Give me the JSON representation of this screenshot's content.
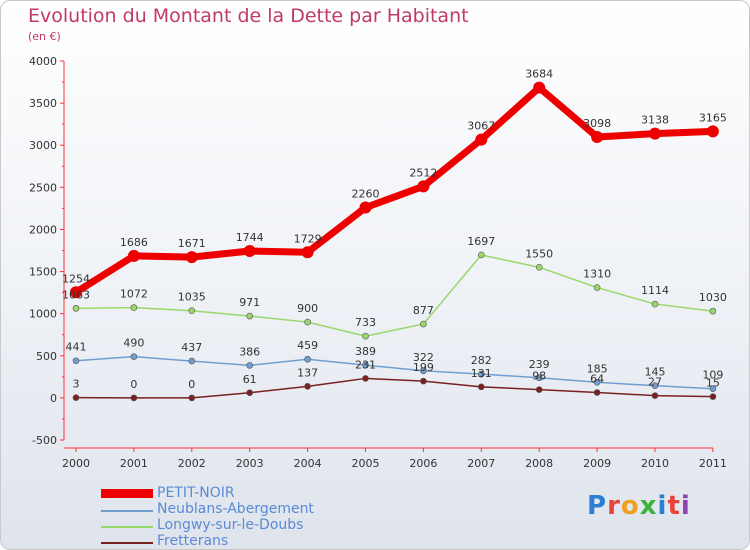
{
  "title": "Evolution du Montant de la Dette par Habitant",
  "subtitle": "(en €)",
  "logo": {
    "text": "Proxiti",
    "colors": [
      "#2a7fd4",
      "#e8443a",
      "#f0a020",
      "#3bb23b",
      "#2a7fd4",
      "#e8443a",
      "#8e44ad"
    ]
  },
  "chart_data": {
    "type": "line",
    "title": "Evolution du Montant de la Dette par Habitant",
    "subtitle": "(en €)",
    "x": [
      "2000",
      "2001",
      "2002",
      "2003",
      "2004",
      "2005",
      "2006",
      "2007",
      "2008",
      "2009",
      "2010",
      "2011"
    ],
    "ylim": [
      -500,
      4000
    ],
    "yticks": [
      "-500",
      "0",
      "500",
      "1000",
      "1500",
      "2000",
      "2500",
      "3000",
      "3500",
      "4000"
    ],
    "grid": false,
    "legend_position": "bottom-left",
    "series": [
      {
        "name": "PETIT-NOIR",
        "color": "#ee0000",
        "values": [
          1254,
          1686,
          1671,
          1744,
          1729,
          2260,
          2512,
          3067,
          3684,
          3098,
          3138,
          3165
        ]
      },
      {
        "name": "Neublans-Abergement",
        "color": "#6f9fd0",
        "values": [
          441,
          490,
          437,
          386,
          459,
          389,
          322,
          282,
          239,
          185,
          145,
          109
        ]
      },
      {
        "name": "Longwy-sur-le-Doubs",
        "color": "#9ad86a",
        "values": [
          1063,
          1072,
          1035,
          971,
          900,
          733,
          877,
          1697,
          1550,
          1310,
          1114,
          1030
        ]
      },
      {
        "name": "Fretterans",
        "color": "#7a2020",
        "values": [
          3,
          0,
          0,
          61,
          137,
          231,
          199,
          131,
          98,
          64,
          27,
          15
        ]
      }
    ]
  }
}
